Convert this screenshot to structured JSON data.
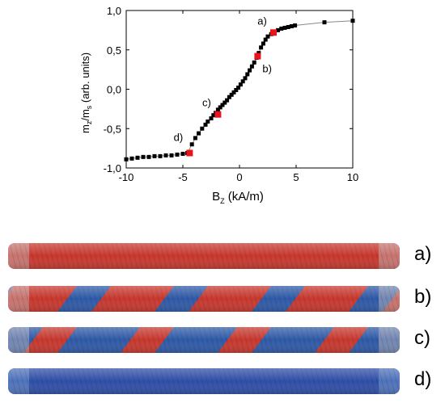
{
  "chart_data": {
    "type": "scatter",
    "xlabel": {
      "main": "B",
      "sub": "Z",
      "rest": " (kA/m)"
    },
    "ylabel": {
      "m": "m",
      "z": "z",
      "slash": "/m",
      "s": "s",
      "rest": " (arb. units)"
    },
    "xlim": [
      -10,
      10
    ],
    "ylim": [
      -1.0,
      1.0
    ],
    "x_ticks": [
      "-10",
      "-5",
      "0",
      "5",
      "10"
    ],
    "y_ticks": [
      "-1,0",
      "-0,5",
      "0,0",
      "0,5",
      "1,0"
    ],
    "grid": false,
    "series": [
      {
        "x": [
          -10.0,
          -9.5,
          -9.0,
          -8.5,
          -8.0,
          -7.5,
          -7.0,
          -6.5,
          -6.0,
          -5.5,
          -5.0,
          -4.6,
          -4.2,
          -3.9,
          -3.6,
          -3.3,
          -3.0,
          -2.8,
          -2.5,
          -2.3,
          -2.1,
          -1.9,
          -1.7,
          -1.5,
          -1.3,
          -1.1,
          -0.9,
          -0.7,
          -0.5,
          -0.3,
          -0.1,
          0.1,
          0.3,
          0.5,
          0.7,
          0.9,
          1.1,
          1.3,
          1.5,
          1.7,
          1.9,
          2.1,
          2.3,
          2.5,
          2.8,
          3.1,
          3.4,
          3.7,
          4.0,
          4.3,
          4.6,
          4.9,
          7.5,
          10.0
        ],
        "y": [
          -0.89,
          -0.88,
          -0.87,
          -0.86,
          -0.86,
          -0.85,
          -0.85,
          -0.84,
          -0.84,
          -0.83,
          -0.82,
          -0.81,
          -0.7,
          -0.62,
          -0.56,
          -0.5,
          -0.45,
          -0.41,
          -0.37,
          -0.33,
          -0.3,
          -0.26,
          -0.23,
          -0.2,
          -0.17,
          -0.14,
          -0.1,
          -0.07,
          -0.04,
          -0.01,
          0.02,
          0.06,
          0.1,
          0.14,
          0.19,
          0.24,
          0.29,
          0.34,
          0.4,
          0.46,
          0.53,
          0.58,
          0.63,
          0.67,
          0.7,
          0.73,
          0.75,
          0.77,
          0.78,
          0.79,
          0.8,
          0.81,
          0.85,
          0.87
        ]
      }
    ],
    "highlighted": [
      {
        "label": "a)",
        "x": 3.0,
        "y": 0.72
      },
      {
        "label": "b)",
        "x": 1.6,
        "y": 0.42
      },
      {
        "label": "c)",
        "x": -1.9,
        "y": -0.32
      },
      {
        "label": "d)",
        "x": -4.4,
        "y": -0.81
      }
    ]
  },
  "panels": [
    {
      "label": "a)",
      "blue_fraction": 0.0
    },
    {
      "label": "b)",
      "blue_fraction": 0.35
    },
    {
      "label": "c)",
      "blue_fraction": 0.65
    },
    {
      "label": "d)",
      "blue_fraction": 1.0
    }
  ]
}
